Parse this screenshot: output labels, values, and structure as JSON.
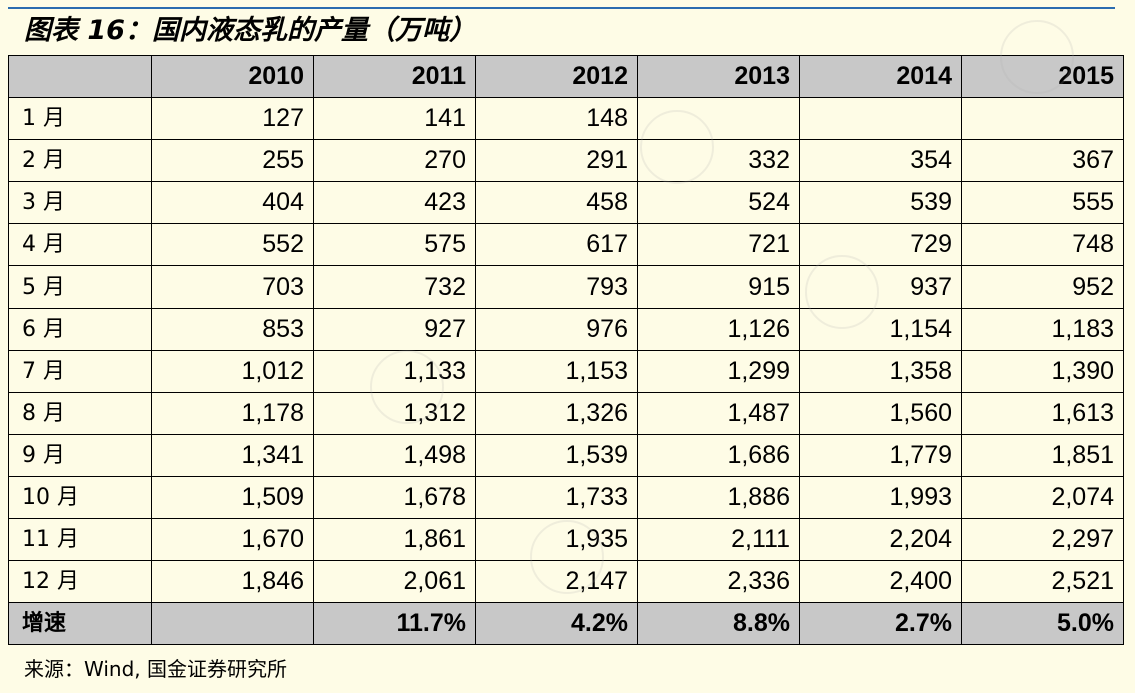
{
  "title": "图表 16：国内液态乳的产量（万吨）",
  "table": {
    "corner": "",
    "years": [
      "2010",
      "2011",
      "2012",
      "2013",
      "2014",
      "2015"
    ],
    "rows": [
      {
        "label": "1 月",
        "values": [
          "127",
          "141",
          "148",
          "",
          "",
          ""
        ]
      },
      {
        "label": "2 月",
        "values": [
          "255",
          "270",
          "291",
          "332",
          "354",
          "367"
        ]
      },
      {
        "label": "3 月",
        "values": [
          "404",
          "423",
          "458",
          "524",
          "539",
          "555"
        ]
      },
      {
        "label": "4 月",
        "values": [
          "552",
          "575",
          "617",
          "721",
          "729",
          "748"
        ]
      },
      {
        "label": "5 月",
        "values": [
          "703",
          "732",
          "793",
          "915",
          "937",
          "952"
        ]
      },
      {
        "label": "6 月",
        "values": [
          "853",
          "927",
          "976",
          "1,126",
          "1,154",
          "1,183"
        ]
      },
      {
        "label": "7 月",
        "values": [
          "1,012",
          "1,133",
          "1,153",
          "1,299",
          "1,358",
          "1,390"
        ]
      },
      {
        "label": "8 月",
        "values": [
          "1,178",
          "1,312",
          "1,326",
          "1,487",
          "1,560",
          "1,613"
        ]
      },
      {
        "label": "9 月",
        "values": [
          "1,341",
          "1,498",
          "1,539",
          "1,686",
          "1,779",
          "1,851"
        ]
      },
      {
        "label": "10 月",
        "values": [
          "1,509",
          "1,678",
          "1,733",
          "1,886",
          "1,993",
          "2,074"
        ]
      },
      {
        "label": "11 月",
        "values": [
          "1,670",
          "1,861",
          "1,935",
          "2,111",
          "2,204",
          "2,297"
        ]
      },
      {
        "label": "12 月",
        "values": [
          "1,846",
          "2,061",
          "2,147",
          "2,336",
          "2,400",
          "2,521"
        ]
      }
    ],
    "growth": {
      "label": "增速",
      "values": [
        "",
        "11.7%",
        "4.2%",
        "8.8%",
        "2.7%",
        "5.0%"
      ]
    }
  },
  "source": "来源：Wind, 国金证券研究所",
  "colors": {
    "background": "#fefce6",
    "header_fill": "#c8c8c8",
    "top_rule": "#2b6cb0"
  }
}
